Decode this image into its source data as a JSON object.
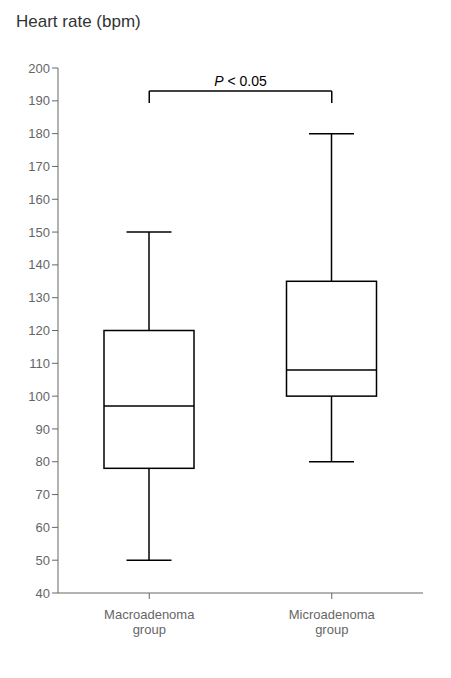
{
  "chart_data": {
    "type": "box",
    "title": "Heart rate (bpm)",
    "categories": [
      "Macroadenoma\ngroup",
      "Microadenoma\ngroup"
    ],
    "boxes": [
      {
        "whislo": 50,
        "q1": 78,
        "med": 97,
        "q3": 120,
        "whishi": 150
      },
      {
        "whislo": 80,
        "q1": 100,
        "med": 108,
        "q3": 135,
        "whishi": 180
      }
    ],
    "color": "#ffffff",
    "ylim": [
      40,
      200
    ],
    "yticks": [
      40,
      50,
      60,
      70,
      80,
      90,
      100,
      110,
      120,
      130,
      140,
      150,
      160,
      170,
      180,
      190,
      200
    ],
    "grid": false,
    "annotations": [
      {
        "text": "P < 0.05",
        "from": "Macroadenoma\ngroup",
        "to": "Microadenoma\ngroup",
        "y": 193
      }
    ]
  }
}
